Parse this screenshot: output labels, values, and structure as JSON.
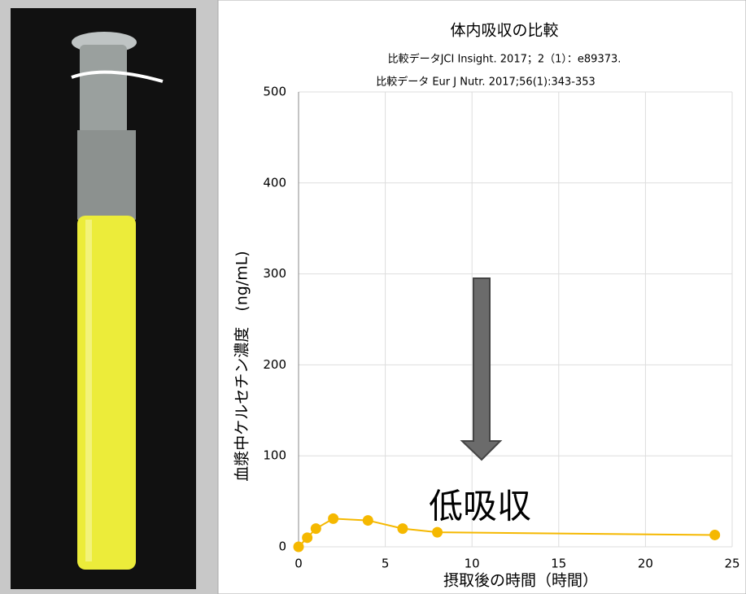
{
  "chart_data": {
    "type": "line",
    "title": "体内吸収の比較",
    "subtitle": [
      "比較データJCI Insight. 2017；2（1）：e89373.",
      "比較データ Eur J Nutr. 2017;56(1):343-353"
    ],
    "x_label": "摂取後の時間（時間）",
    "y_label": "血漿中ケルセチン濃度　(ng/mL)",
    "annotation": "低吸収",
    "x": [
      0,
      0.5,
      1,
      2,
      4,
      6,
      8,
      24
    ],
    "series": [
      {
        "name": "ケルセチン",
        "color": "#f5b800",
        "values": [
          0,
          10,
          20,
          31,
          29,
          20,
          16,
          13
        ]
      }
    ],
    "xlim": [
      0,
      25
    ],
    "xticks": [
      0,
      5,
      10,
      15,
      20,
      25
    ],
    "ylim": [
      0,
      500
    ],
    "yticks": [
      0,
      100,
      200,
      300,
      400,
      500
    ],
    "grid": true
  }
}
